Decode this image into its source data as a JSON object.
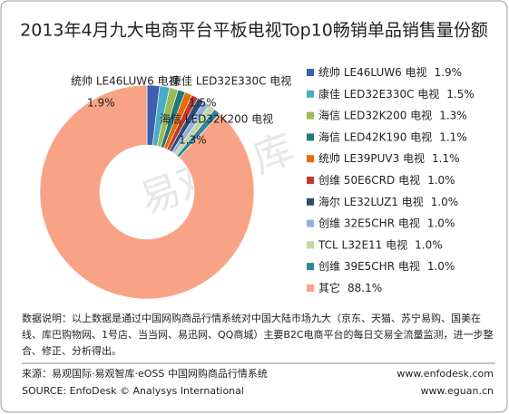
{
  "chart_data": {
    "type": "donut",
    "title": "2013年4月九大电商平台平板电视Top10畅销单品销售量份额",
    "categories": [
      "统帅 LE46LUW6 电视",
      "康佳 LED32E330C 电视",
      "海信 LED32K200 电视",
      "海信 LED42K190 电视",
      "统帅 LE39PUV3 电视",
      "创维 50E6CRD 电视",
      "海尔 LE32LUZ1 电视",
      "创维 32E5CHR 电视",
      "TCL L32E11 电视",
      "创维 39E5CHR 电视",
      "其它"
    ],
    "values": [
      1.9,
      1.5,
      1.3,
      1.1,
      1.1,
      1.0,
      1.0,
      1.0,
      1.0,
      1.0,
      88.1
    ],
    "value_labels": [
      "1.9%",
      "1.5%",
      "1.3%",
      "1.1%",
      "1.1%",
      "1.0%",
      "1.0%",
      "1.0%",
      "1.0%",
      "1.0%",
      "88.1%"
    ],
    "colors": [
      "#3f5fb0",
      "#4bacc6",
      "#9bbb59",
      "#1f7a7a",
      "#e46c0a",
      "#c0392b",
      "#2c4d75",
      "#8db3e2",
      "#c3d69b",
      "#31859c",
      "#f9a386"
    ],
    "legend": "right"
  },
  "watermark": "易观智库",
  "note": [
    "数据说明：以上数据是通过中国网购商品行情系统对中国大陆市场九大（京东、天猫、苏宁易购、国美在",
    "线、库巴购物网、1号店、当当网、易迅网、QQ商城）主要B2C电商平台的每日交易全流量监测，进一步整",
    "合、修正、分析得出。"
  ],
  "source": [
    "来源：易观国际·易观智库·eOSS 中国网购商品行情系统",
    "SOURCE: EnfoDesk © Analysys International"
  ],
  "urls": [
    "www.enfodesk.com",
    "www.eguan.cn"
  ]
}
